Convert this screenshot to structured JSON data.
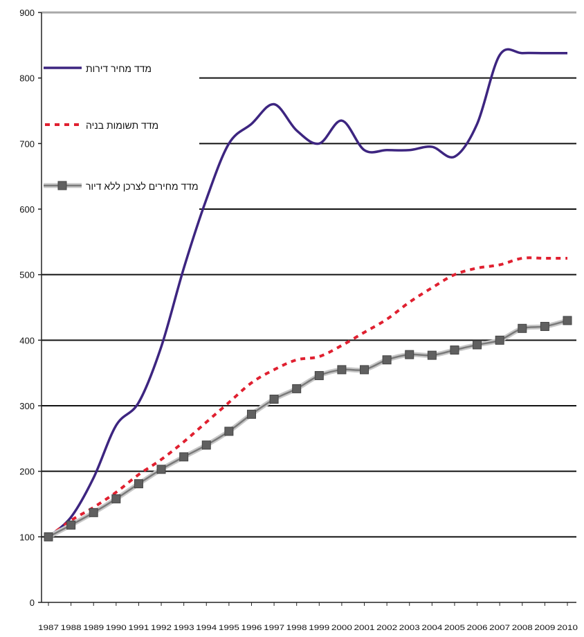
{
  "chart_data": {
    "type": "line",
    "title": "",
    "xlabel": "",
    "ylabel": "",
    "ylim": [
      0,
      900
    ],
    "yticks": [
      0,
      100,
      200,
      300,
      400,
      500,
      600,
      700,
      800,
      900
    ],
    "grid": true,
    "legend_position": "top-left",
    "x": [
      "1987",
      "1988",
      "1989",
      "1990",
      "1991",
      "1992",
      "1993",
      "1994",
      "1995",
      "1996",
      "1997",
      "1998",
      "1999",
      "2000",
      "2001",
      "2002",
      "2003",
      "2004",
      "2005",
      "2006",
      "2007",
      "2008",
      "2009",
      "2010"
    ],
    "series": [
      {
        "name": "מדד מחיר דירות",
        "color": "#3d2580",
        "style": "solid",
        "marker": "none",
        "values": [
          100,
          130,
          190,
          270,
          305,
          390,
          510,
          615,
          700,
          730,
          760,
          720,
          700,
          735,
          690,
          690,
          690,
          695,
          680,
          730,
          835,
          838,
          838,
          838
        ]
      },
      {
        "name": "מדד תשומות בניה",
        "color": "#e02030",
        "style": "dotted",
        "marker": "none",
        "values": [
          100,
          125,
          145,
          168,
          195,
          218,
          245,
          275,
          305,
          335,
          355,
          370,
          375,
          392,
          412,
          432,
          458,
          480,
          500,
          510,
          515,
          525,
          525,
          525
        ]
      },
      {
        "name": "מדד מחירים לצרכן ללא דיור",
        "color": "#7a7a7a",
        "style": "solid",
        "marker": "square",
        "values": [
          100,
          118,
          137,
          158,
          181,
          203,
          222,
          240,
          261,
          287,
          310,
          326,
          346,
          355,
          355,
          370,
          378,
          377,
          385,
          393,
          400,
          418,
          421,
          430
        ]
      }
    ]
  }
}
